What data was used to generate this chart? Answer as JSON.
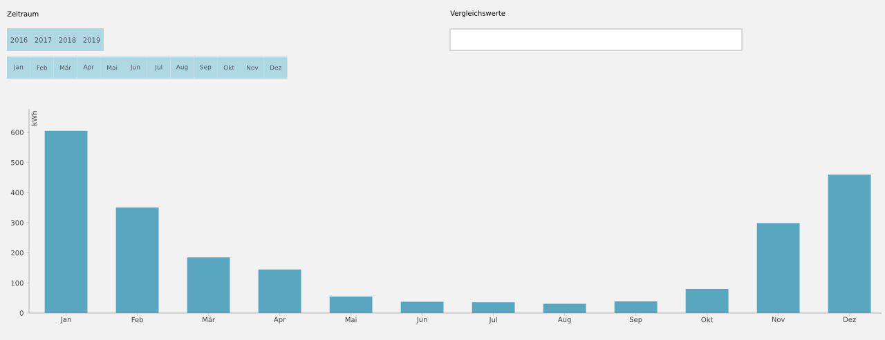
{
  "chart_data": {
    "type": "bar",
    "ylabel": "kWh",
    "categories": [
      "Jan",
      "Feb",
      "Mär",
      "Apr",
      "Mai",
      "Jun",
      "Jul",
      "Aug",
      "Sep",
      "Okt",
      "Nov",
      "Dez"
    ],
    "values": [
      605,
      351,
      185,
      145,
      55,
      38,
      36,
      31,
      39,
      80,
      299,
      460
    ],
    "color": "#58a6c0",
    "ylim": [
      0,
      678
    ],
    "yticks": [
      0,
      100,
      200,
      300,
      400,
      500,
      600
    ],
    "grid": false,
    "annotations": [
      "Zeitraum",
      "2016",
      "2017",
      "2018",
      "2019",
      "Jan",
      "Feb",
      "Mär",
      "Apr",
      "Mai",
      "Jun",
      "Jul",
      "Aug",
      "Sep",
      "Okt",
      "Nov",
      "Dez",
      "Vergleichswerte"
    ]
  }
}
